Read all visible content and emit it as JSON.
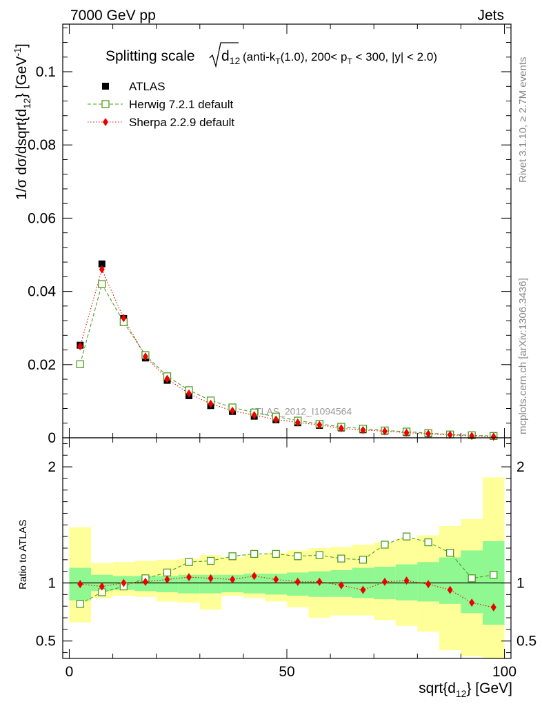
{
  "header": {
    "left": "7000 GeV pp",
    "right": "Jets"
  },
  "side": {
    "rivet": "Rivet 3.1.10, ≥ 2.7M events",
    "mcplots": "mcplots.cern.ch [arXiv:1306.3436]"
  },
  "watermark": "ATLAS_2012_I1094564",
  "chart_data": [
    {
      "type": "scatter",
      "title": "Splitting scale √d12 (anti-kT(1.0), 200< pT < 300, |y| < 2.0)",
      "title_parts": {
        "prefix": "Splitting scale",
        "sqrt_arg": "d",
        "sqrt_sub": "12",
        "mid1": " (anti-k",
        "sub1": "T",
        "mid2": "(1.0), 200< p",
        "sub2": "T",
        "mid3": " < 300, |y| < 2.0)"
      },
      "ylabel": "1/σ dσ/dsqrt{d12} [GeV-1]",
      "xlabel": "sqrt{d12} [GeV]",
      "xlim": [
        0,
        100
      ],
      "ylim": [
        0,
        0.113
      ],
      "yticks": [
        "0.02",
        "0.04",
        "0.06",
        "0.08",
        "0.1"
      ],
      "ytick_values": [
        0.02,
        0.04,
        0.06,
        0.08,
        0.1
      ],
      "ytick_zero": "0",
      "legend_position": "top-left",
      "x": [
        2.5,
        7.5,
        12.5,
        17.5,
        22.5,
        27.5,
        32.5,
        37.5,
        42.5,
        47.5,
        52.5,
        57.5,
        62.5,
        67.5,
        72.5,
        77.5,
        82.5,
        87.5,
        92.5,
        97.5
      ],
      "series": [
        {
          "name": "ATLAS",
          "color": "#000000",
          "marker": "square-filled",
          "values": [
            0.0253,
            0.0475,
            0.0326,
            0.0218,
            0.0157,
            0.0115,
            0.0088,
            0.0072,
            0.0059,
            0.0049,
            0.0041,
            0.0034,
            0.0027,
            0.0022,
            0.0018,
            0.0014,
            0.0011,
            0.0008,
            0.0006,
            0.0004
          ]
        },
        {
          "name": "Herwig 7.2.1 default",
          "color": "#4d9c1e",
          "marker": "square-open",
          "line": "dashed",
          "values": [
            0.0201,
            0.042,
            0.0316,
            0.0226,
            0.0168,
            0.013,
            0.0102,
            0.0083,
            0.0069,
            0.0058,
            0.0047,
            0.0038,
            0.003,
            0.0025,
            0.002,
            0.0017,
            0.0013,
            0.0009,
            0.0007,
            0.0005
          ]
        },
        {
          "name": "Sherpa 2.2.9 default",
          "color": "#ee0000",
          "marker": "diamond-filled",
          "line": "dotted",
          "values": [
            0.025,
            0.046,
            0.0327,
            0.0222,
            0.0161,
            0.0121,
            0.0093,
            0.0074,
            0.0062,
            0.005,
            0.0042,
            0.0035,
            0.0026,
            0.0021,
            0.0018,
            0.0014,
            0.0011,
            0.0008,
            0.0005,
            0.0003
          ]
        }
      ]
    },
    {
      "type": "scatter",
      "ylabel": "Ratio to ATLAS",
      "xlabel": "sqrt{d12} [GeV]",
      "xlim": [
        -1.5,
        101.5
      ],
      "ylim": [
        0.35,
        2.25
      ],
      "yticks": [
        "0.5",
        "1",
        "2"
      ],
      "ytick_values": [
        0.5,
        1,
        2
      ],
      "xticks": [
        "0",
        "50",
        "100"
      ],
      "xtick_values": [
        0,
        50,
        100
      ],
      "reference_line": 1,
      "bands": {
        "colors": {
          "inner": "#90f890",
          "outer": "#ffff99"
        },
        "bins": [
          [
            0,
            5
          ],
          [
            5,
            10
          ],
          [
            10,
            15
          ],
          [
            15,
            20
          ],
          [
            20,
            25
          ],
          [
            25,
            30
          ],
          [
            30,
            35
          ],
          [
            35,
            40
          ],
          [
            40,
            45
          ],
          [
            45,
            50
          ],
          [
            50,
            55
          ],
          [
            55,
            60
          ],
          [
            60,
            65
          ],
          [
            65,
            70
          ],
          [
            70,
            75
          ],
          [
            75,
            80
          ],
          [
            80,
            85
          ],
          [
            85,
            90
          ],
          [
            90,
            95
          ],
          [
            95,
            100
          ]
        ],
        "inner_lo": [
          0.85,
          0.93,
          0.94,
          0.93,
          0.92,
          0.91,
          0.91,
          0.92,
          0.91,
          0.9,
          0.89,
          0.88,
          0.88,
          0.87,
          0.86,
          0.85,
          0.84,
          0.82,
          0.74,
          0.64
        ],
        "inner_hi": [
          1.13,
          1.07,
          1.06,
          1.06,
          1.06,
          1.07,
          1.07,
          1.07,
          1.08,
          1.08,
          1.09,
          1.1,
          1.11,
          1.13,
          1.14,
          1.16,
          1.18,
          1.22,
          1.28,
          1.36
        ],
        "outer_lo": [
          0.66,
          0.87,
          0.89,
          0.88,
          0.84,
          0.83,
          0.77,
          0.89,
          0.87,
          0.84,
          0.79,
          0.7,
          0.72,
          0.72,
          0.68,
          0.63,
          0.58,
          0.42,
          0.37,
          0.35
        ],
        "outer_hi": [
          1.48,
          1.17,
          1.18,
          1.19,
          1.2,
          1.21,
          1.24,
          1.22,
          1.24,
          1.26,
          1.28,
          1.3,
          1.31,
          1.33,
          1.35,
          1.38,
          1.41,
          1.49,
          1.55,
          1.91
        ]
      },
      "x": [
        2.5,
        7.5,
        12.5,
        17.5,
        22.5,
        27.5,
        32.5,
        37.5,
        42.5,
        47.5,
        52.5,
        57.5,
        62.5,
        67.5,
        72.5,
        77.5,
        82.5,
        87.5,
        92.5,
        97.5
      ],
      "series": [
        {
          "name": "Herwig 7.2.1 default",
          "color": "#4d9c1e",
          "marker": "square-open",
          "line": "dashed",
          "values": [
            0.82,
            0.92,
            0.97,
            1.04,
            1.09,
            1.18,
            1.19,
            1.23,
            1.25,
            1.25,
            1.23,
            1.24,
            1.21,
            1.2,
            1.33,
            1.4,
            1.35,
            1.26,
            1.04,
            1.07
          ]
        },
        {
          "name": "Sherpa 2.2.9 default",
          "color": "#ee0000",
          "marker": "diamond-filled",
          "line": "dotted",
          "values": [
            0.99,
            0.97,
            1.0,
            1.01,
            1.03,
            1.05,
            1.04,
            1.03,
            1.06,
            1.03,
            1.01,
            1.01,
            0.98,
            0.94,
            1.01,
            1.02,
            0.99,
            0.94,
            0.83,
            0.79
          ]
        }
      ]
    }
  ]
}
